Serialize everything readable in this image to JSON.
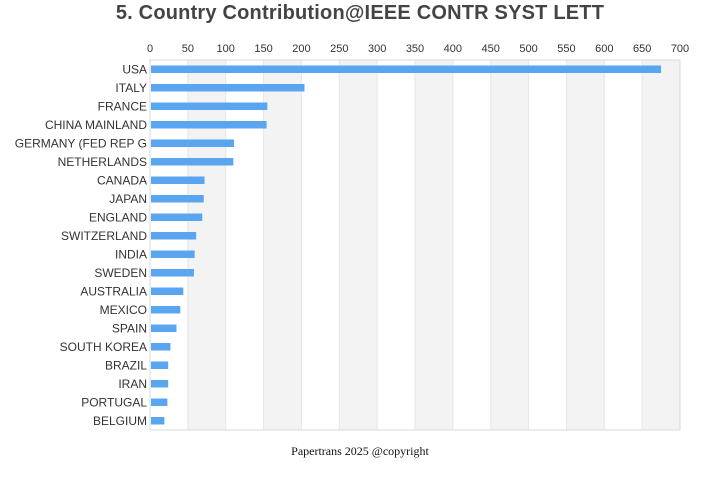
{
  "chart_data": {
    "type": "bar",
    "orientation": "horizontal",
    "title": "5. Country Contribution@IEEE CONTR SYST LETT",
    "categories": [
      "USA",
      "ITALY",
      "FRANCE",
      "CHINA MAINLAND",
      "GERMANY (FED REP G",
      "NETHERLANDS",
      "CANADA",
      "JAPAN",
      "ENGLAND",
      "SWITZERLAND",
      "INDIA",
      "SWEDEN",
      "AUSTRALIA",
      "MEXICO",
      "SPAIN",
      "SOUTH KOREA",
      "BRAZIL",
      "IRAN",
      "PORTUGAL",
      "BELGIUM"
    ],
    "values": [
      675,
      204,
      155,
      154,
      111,
      110,
      72,
      71,
      69,
      61,
      59,
      58,
      44,
      40,
      35,
      27,
      24,
      24,
      23,
      19
    ],
    "xlim": [
      0,
      700
    ],
    "xticks": [
      0,
      50,
      100,
      150,
      200,
      250,
      300,
      350,
      400,
      450,
      500,
      550,
      600,
      650,
      700
    ],
    "xaxis_position": "top",
    "grid": "alternating vertical bands",
    "legend": "none",
    "bar_color": "#5aa5f0",
    "band_color": "#f3f3f3"
  },
  "footer": "Papertrans 2025 @copyright"
}
